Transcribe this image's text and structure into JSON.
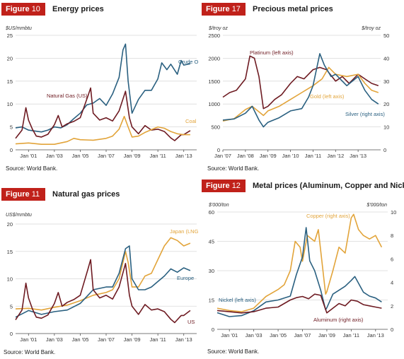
{
  "figures": [
    {
      "label": "Figure",
      "number": "10",
      "title": "Energy prices",
      "source": "Source: World Bank.",
      "chart_data": {
        "type": "line",
        "y_unit_left": "$US/mmbtu",
        "ylim": [
          0,
          25
        ],
        "yticks": [
          "0",
          "5",
          "10",
          "15",
          "20",
          "25"
        ],
        "xlim": [
          2000,
          2014
        ],
        "xticks": [
          {
            "label": "Jan '01",
            "x": 2001
          },
          {
            "label": "Jan '03",
            "x": 2003
          },
          {
            "label": "Jan '05",
            "x": 2005
          },
          {
            "label": "Jan '07",
            "x": 2007
          },
          {
            "label": "Jan '09",
            "x": 2009
          },
          {
            "label": "Jan '11",
            "x": 2011
          },
          {
            "label": "Jan '13",
            "x": 2013
          }
        ],
        "grid": true,
        "series": [
          {
            "name": "Crude Oil",
            "color": "#2a6080",
            "axis": "left",
            "x": [
              2000,
              2000.5,
              2001,
              2001.5,
              2002,
              2002.5,
              2003,
              2003.5,
              2004,
              2004.5,
              2005,
              2005.5,
              2006,
              2006.5,
              2007,
              2007.5,
              2008,
              2008.3,
              2008.5,
              2008.7,
              2009,
              2009.5,
              2010,
              2010.5,
              2011,
              2011.3,
              2011.7,
              2012,
              2012.5,
              2012.8,
              2013,
              2013.5
            ],
            "y": [
              4.8,
              5.0,
              4.3,
              4.1,
              3.9,
              4.3,
              5.0,
              4.8,
              5.5,
              6.8,
              8.0,
              9.8,
              10.2,
              11.2,
              9.7,
              12.2,
              15.8,
              21.8,
              23.1,
              15.0,
              8.0,
              11.0,
              13.0,
              13.0,
              15.5,
              19.0,
              17.5,
              18.7,
              16.5,
              19.5,
              18.5,
              18.8
            ]
          },
          {
            "name": "Natural Gas (US)",
            "color": "#6e1b22",
            "axis": "left",
            "x": [
              2000,
              2000.5,
              2000.8,
              2001,
              2001.3,
              2001.6,
              2002,
              2002.5,
              2003,
              2003.3,
              2003.6,
              2004,
              2004.5,
              2005,
              2005.6,
              2005.8,
              2006,
              2006.5,
              2007,
              2007.5,
              2008,
              2008.5,
              2008.8,
              2009,
              2009.5,
              2010,
              2010.5,
              2011,
              2011.5,
              2012,
              2012.3,
              2012.8,
              2013,
              2013.5
            ],
            "y": [
              2.5,
              4.3,
              9.2,
              6.5,
              4.5,
              3.0,
              2.8,
              3.4,
              5.5,
              7.5,
              5.0,
              5.7,
              6.2,
              7.0,
              11.8,
              13.5,
              8.0,
              6.5,
              7.0,
              6.3,
              8.5,
              12.8,
              7.0,
              5.0,
              3.5,
              5.3,
              4.3,
              4.5,
              4.0,
              2.6,
              2.0,
              3.3,
              3.3,
              4.2
            ]
          },
          {
            "name": "Coal",
            "color": "#e2a43a",
            "axis": "left",
            "x": [
              2000,
              2001,
              2002,
              2003,
              2004,
              2004.5,
              2005,
              2006,
              2007,
              2007.5,
              2008,
              2008.4,
              2008.7,
              2009,
              2009.5,
              2010,
              2011,
              2011.5,
              2012,
              2012.5,
              2013,
              2013.5
            ],
            "y": [
              1.3,
              1.5,
              1.2,
              1.2,
              1.8,
              2.5,
              2.2,
              2.1,
              2.5,
              3.0,
              4.5,
              7.3,
              5.0,
              2.8,
              3.0,
              3.8,
              5.0,
              4.7,
              4.0,
              3.5,
              3.3,
              3.3
            ]
          }
        ]
      }
    },
    {
      "label": "Figure",
      "number": "17",
      "title": "Precious metal prices",
      "source": "Source: World Bank.",
      "chart_data": {
        "type": "line",
        "y_unit_left": "$/troy oz",
        "y_unit_right": "$/troy oz",
        "ylim": [
          0,
          2500
        ],
        "yticks": [
          "0",
          "500",
          "1000",
          "1500",
          "2000",
          "2500"
        ],
        "ylim_right": [
          0,
          50
        ],
        "yticks_right": [
          "0",
          "10",
          "20",
          "30",
          "40",
          "50"
        ],
        "xlim": [
          2007,
          2014
        ],
        "xticks": [
          {
            "label": "Jan '07",
            "x": 2007
          },
          {
            "label": "Jan '08",
            "x": 2008
          },
          {
            "label": "Jan '09",
            "x": 2009
          },
          {
            "label": "Jan '10",
            "x": 2010
          },
          {
            "label": "Jan '11",
            "x": 2011
          },
          {
            "label": "Jan '12",
            "x": 2012
          },
          {
            "label": "Jan '13",
            "x": 2013
          }
        ],
        "grid": true,
        "series": [
          {
            "name": "Platinum (left axis)",
            "color": "#6e1b22",
            "axis": "left",
            "x": [
              2007,
              2007.3,
              2007.6,
              2008,
              2008.2,
              2008.4,
              2008.6,
              2008.8,
              2009,
              2009.3,
              2009.6,
              2010,
              2010.3,
              2010.6,
              2011,
              2011.3,
              2011.6,
              2012,
              2012.3,
              2012.6,
              2013,
              2013.3,
              2013.6,
              2013.9
            ],
            "y": [
              1150,
              1250,
              1300,
              1550,
              2050,
              2000,
              1600,
              900,
              950,
              1100,
              1200,
              1450,
              1600,
              1550,
              1750,
              1800,
              1750,
              1500,
              1600,
              1450,
              1650,
              1550,
              1450,
              1400
            ]
          },
          {
            "name": "Gold (left axis)",
            "color": "#e2a43a",
            "axis": "left",
            "x": [
              2007,
              2007.5,
              2008,
              2008.3,
              2008.8,
              2009,
              2009.5,
              2010,
              2010.5,
              2011,
              2011.4,
              2011.7,
              2012,
              2012.5,
              2013,
              2013.3,
              2013.6,
              2013.9
            ],
            "y": [
              630,
              680,
              880,
              950,
              750,
              850,
              950,
              1100,
              1250,
              1400,
              1550,
              1800,
              1650,
              1600,
              1650,
              1450,
              1300,
              1250
            ]
          },
          {
            "name": "Silver (right axis)",
            "color": "#2a6080",
            "axis": "right",
            "x": [
              2007,
              2007.5,
              2008,
              2008.3,
              2008.6,
              2008.8,
              2009,
              2009.5,
              2010,
              2010.5,
              2010.8,
              2011,
              2011.3,
              2011.5,
              2011.8,
              2012,
              2012.5,
              2013,
              2013.3,
              2013.6,
              2013.9
            ],
            "y": [
              13,
              13.5,
              16,
              19,
              13,
              10,
              12,
              14,
              17,
              18,
              23,
              28,
              42,
              37,
              32,
              33,
              28,
              32,
              26,
              22,
              20
            ]
          }
        ]
      }
    },
    {
      "label": "Figure",
      "number": "11",
      "title": "Natural gas prices",
      "source": "Source: World Bank.",
      "chart_data": {
        "type": "line",
        "y_unit_left": "US$/mmbtu",
        "ylim": [
          0,
          20
        ],
        "yticks": [
          "0",
          "5",
          "10",
          "15",
          "20"
        ],
        "xlim": [
          2000,
          2014
        ],
        "xticks": [
          {
            "label": "Jan '01",
            "x": 2001
          },
          {
            "label": "Jan '03",
            "x": 2003
          },
          {
            "label": "Jan '05",
            "x": 2005
          },
          {
            "label": "Jan '07",
            "x": 2007
          },
          {
            "label": "Jan '09",
            "x": 2009
          },
          {
            "label": "Jan '11",
            "x": 2011
          },
          {
            "label": "Jan '13",
            "x": 2013
          }
        ],
        "grid": true,
        "series": [
          {
            "name": "Japan (LNG)",
            "color": "#e2a43a",
            "axis": "left",
            "x": [
              2000,
              2001,
              2002,
              2003,
              2004,
              2005,
              2006,
              2007,
              2007.5,
              2008,
              2008.5,
              2008.7,
              2009,
              2009.5,
              2010,
              2010.5,
              2011,
              2011.5,
              2012,
              2012.5,
              2013,
              2013.5
            ],
            "y": [
              4.5,
              4.6,
              4.3,
              4.8,
              5.2,
              6.0,
              7.0,
              7.5,
              8.0,
              10.0,
              15.0,
              13.0,
              8.5,
              8.5,
              10.5,
              11.0,
              13.5,
              16.0,
              17.5,
              17.0,
              16.0,
              16.5
            ]
          },
          {
            "name": "Europe",
            "color": "#2a6080",
            "axis": "left",
            "x": [
              2000,
              2001,
              2002,
              2003,
              2004,
              2005,
              2006,
              2007,
              2007.5,
              2008,
              2008.5,
              2008.8,
              2009,
              2009.5,
              2010,
              2010.5,
              2011,
              2011.5,
              2012,
              2012.5,
              2013,
              2013.5
            ],
            "y": [
              3.0,
              4.2,
              3.5,
              4.0,
              4.3,
              5.5,
              8.0,
              8.5,
              8.5,
              11.0,
              15.5,
              16.0,
              10.0,
              8.0,
              8.0,
              8.5,
              9.5,
              10.5,
              11.8,
              11.2,
              12.0,
              11.5
            ]
          },
          {
            "name": "US",
            "color": "#6e1b22",
            "axis": "left",
            "x": [
              2000,
              2000.5,
              2000.8,
              2001,
              2001.3,
              2001.6,
              2002,
              2002.5,
              2003,
              2003.3,
              2003.6,
              2004,
              2004.5,
              2005,
              2005.6,
              2005.8,
              2006,
              2006.5,
              2007,
              2007.5,
              2008,
              2008.5,
              2008.8,
              2009,
              2009.5,
              2010,
              2010.5,
              2011,
              2011.5,
              2012,
              2012.3,
              2012.8,
              2013,
              2013.5
            ],
            "y": [
              2.5,
              4.3,
              9.2,
              6.5,
              4.5,
              3.0,
              2.8,
              3.4,
              5.5,
              7.5,
              5.0,
              5.7,
              6.2,
              7.0,
              11.8,
              13.5,
              8.0,
              6.5,
              7.0,
              6.3,
              8.5,
              12.8,
              7.0,
              5.0,
              3.5,
              5.3,
              4.3,
              4.5,
              4.0,
              2.6,
              2.0,
              3.3,
              3.3,
              4.2
            ]
          }
        ]
      }
    },
    {
      "label": "Figure",
      "number": "12",
      "title": "Metal prices (Aluminum, Copper and Nickel)",
      "source": "Source: World Bank.",
      "chart_data": {
        "type": "line",
        "y_unit_left": "$'000/ton",
        "y_unit_right": "$'000/ton",
        "ylim": [
          0,
          60
        ],
        "yticks": [
          "0",
          "15",
          "30",
          "45",
          "60"
        ],
        "ylim_right": [
          0,
          10
        ],
        "yticks_right": [
          "0",
          "2",
          "4",
          "6",
          "8",
          "10"
        ],
        "xlim": [
          2000,
          2014
        ],
        "xticks": [
          {
            "label": "Jan '01",
            "x": 2001
          },
          {
            "label": "Jan '03",
            "x": 2003
          },
          {
            "label": "Jan '05",
            "x": 2005
          },
          {
            "label": "Jan '07",
            "x": 2007
          },
          {
            "label": "Jan '09",
            "x": 2009
          },
          {
            "label": "Jan '11",
            "x": 2011
          },
          {
            "label": "Jan '13",
            "x": 2013
          }
        ],
        "grid": true,
        "series": [
          {
            "name": "Copper (right axis)",
            "color": "#e2a43a",
            "axis": "right",
            "x": [
              2000,
              2001,
              2002,
              2003,
              2004,
              2005,
              2005.5,
              2006,
              2006.4,
              2006.8,
              2007,
              2007.4,
              2008,
              2008.3,
              2008.9,
              2009,
              2009.5,
              2010,
              2010.5,
              2011,
              2011.2,
              2011.6,
              2012,
              2012.5,
              2013,
              2013.5
            ],
            "y": [
              1.8,
              1.6,
              1.5,
              1.8,
              2.8,
              3.4,
              3.8,
              5.0,
              7.5,
              7.0,
              5.8,
              8.0,
              7.5,
              8.5,
              3.0,
              3.2,
              5.0,
              7.0,
              6.5,
              9.5,
              9.8,
              8.5,
              8.0,
              7.7,
              8.0,
              7.0
            ]
          },
          {
            "name": "Nickel (left axis)",
            "color": "#2a6080",
            "axis": "left",
            "x": [
              2000,
              2001,
              2002,
              2003,
              2004,
              2005,
              2006,
              2006.5,
              2007,
              2007.3,
              2007.6,
              2008,
              2008.5,
              2008.9,
              2009,
              2009.5,
              2010,
              2010.5,
              2011,
              2011.3,
              2012,
              2012.5,
              2013,
              2013.5
            ],
            "y": [
              8.5,
              6.5,
              7.0,
              9.5,
              14.0,
              15.0,
              17.0,
              28.0,
              37.0,
              52.0,
              35.0,
              30.0,
              20.0,
              10.0,
              11.0,
              18.0,
              20.0,
              22.0,
              25.0,
              27.0,
              19.0,
              17.0,
              16.0,
              14.0
            ]
          },
          {
            "name": "Aluminum (right axis)",
            "color": "#6e1b22",
            "axis": "right",
            "x": [
              2000,
              2001,
              2002,
              2003,
              2004,
              2005,
              2006,
              2006.5,
              2007,
              2007.5,
              2008,
              2008.5,
              2009,
              2009.5,
              2010,
              2010.5,
              2011,
              2011.5,
              2012,
              2012.5,
              2013,
              2013.5
            ],
            "y": [
              1.6,
              1.5,
              1.4,
              1.5,
              1.8,
              1.9,
              2.5,
              2.7,
              2.8,
              2.6,
              3.0,
              2.9,
              1.4,
              1.8,
              2.2,
              2.0,
              2.5,
              2.4,
              2.1,
              2.0,
              1.9,
              1.8
            ]
          }
        ]
      }
    }
  ]
}
